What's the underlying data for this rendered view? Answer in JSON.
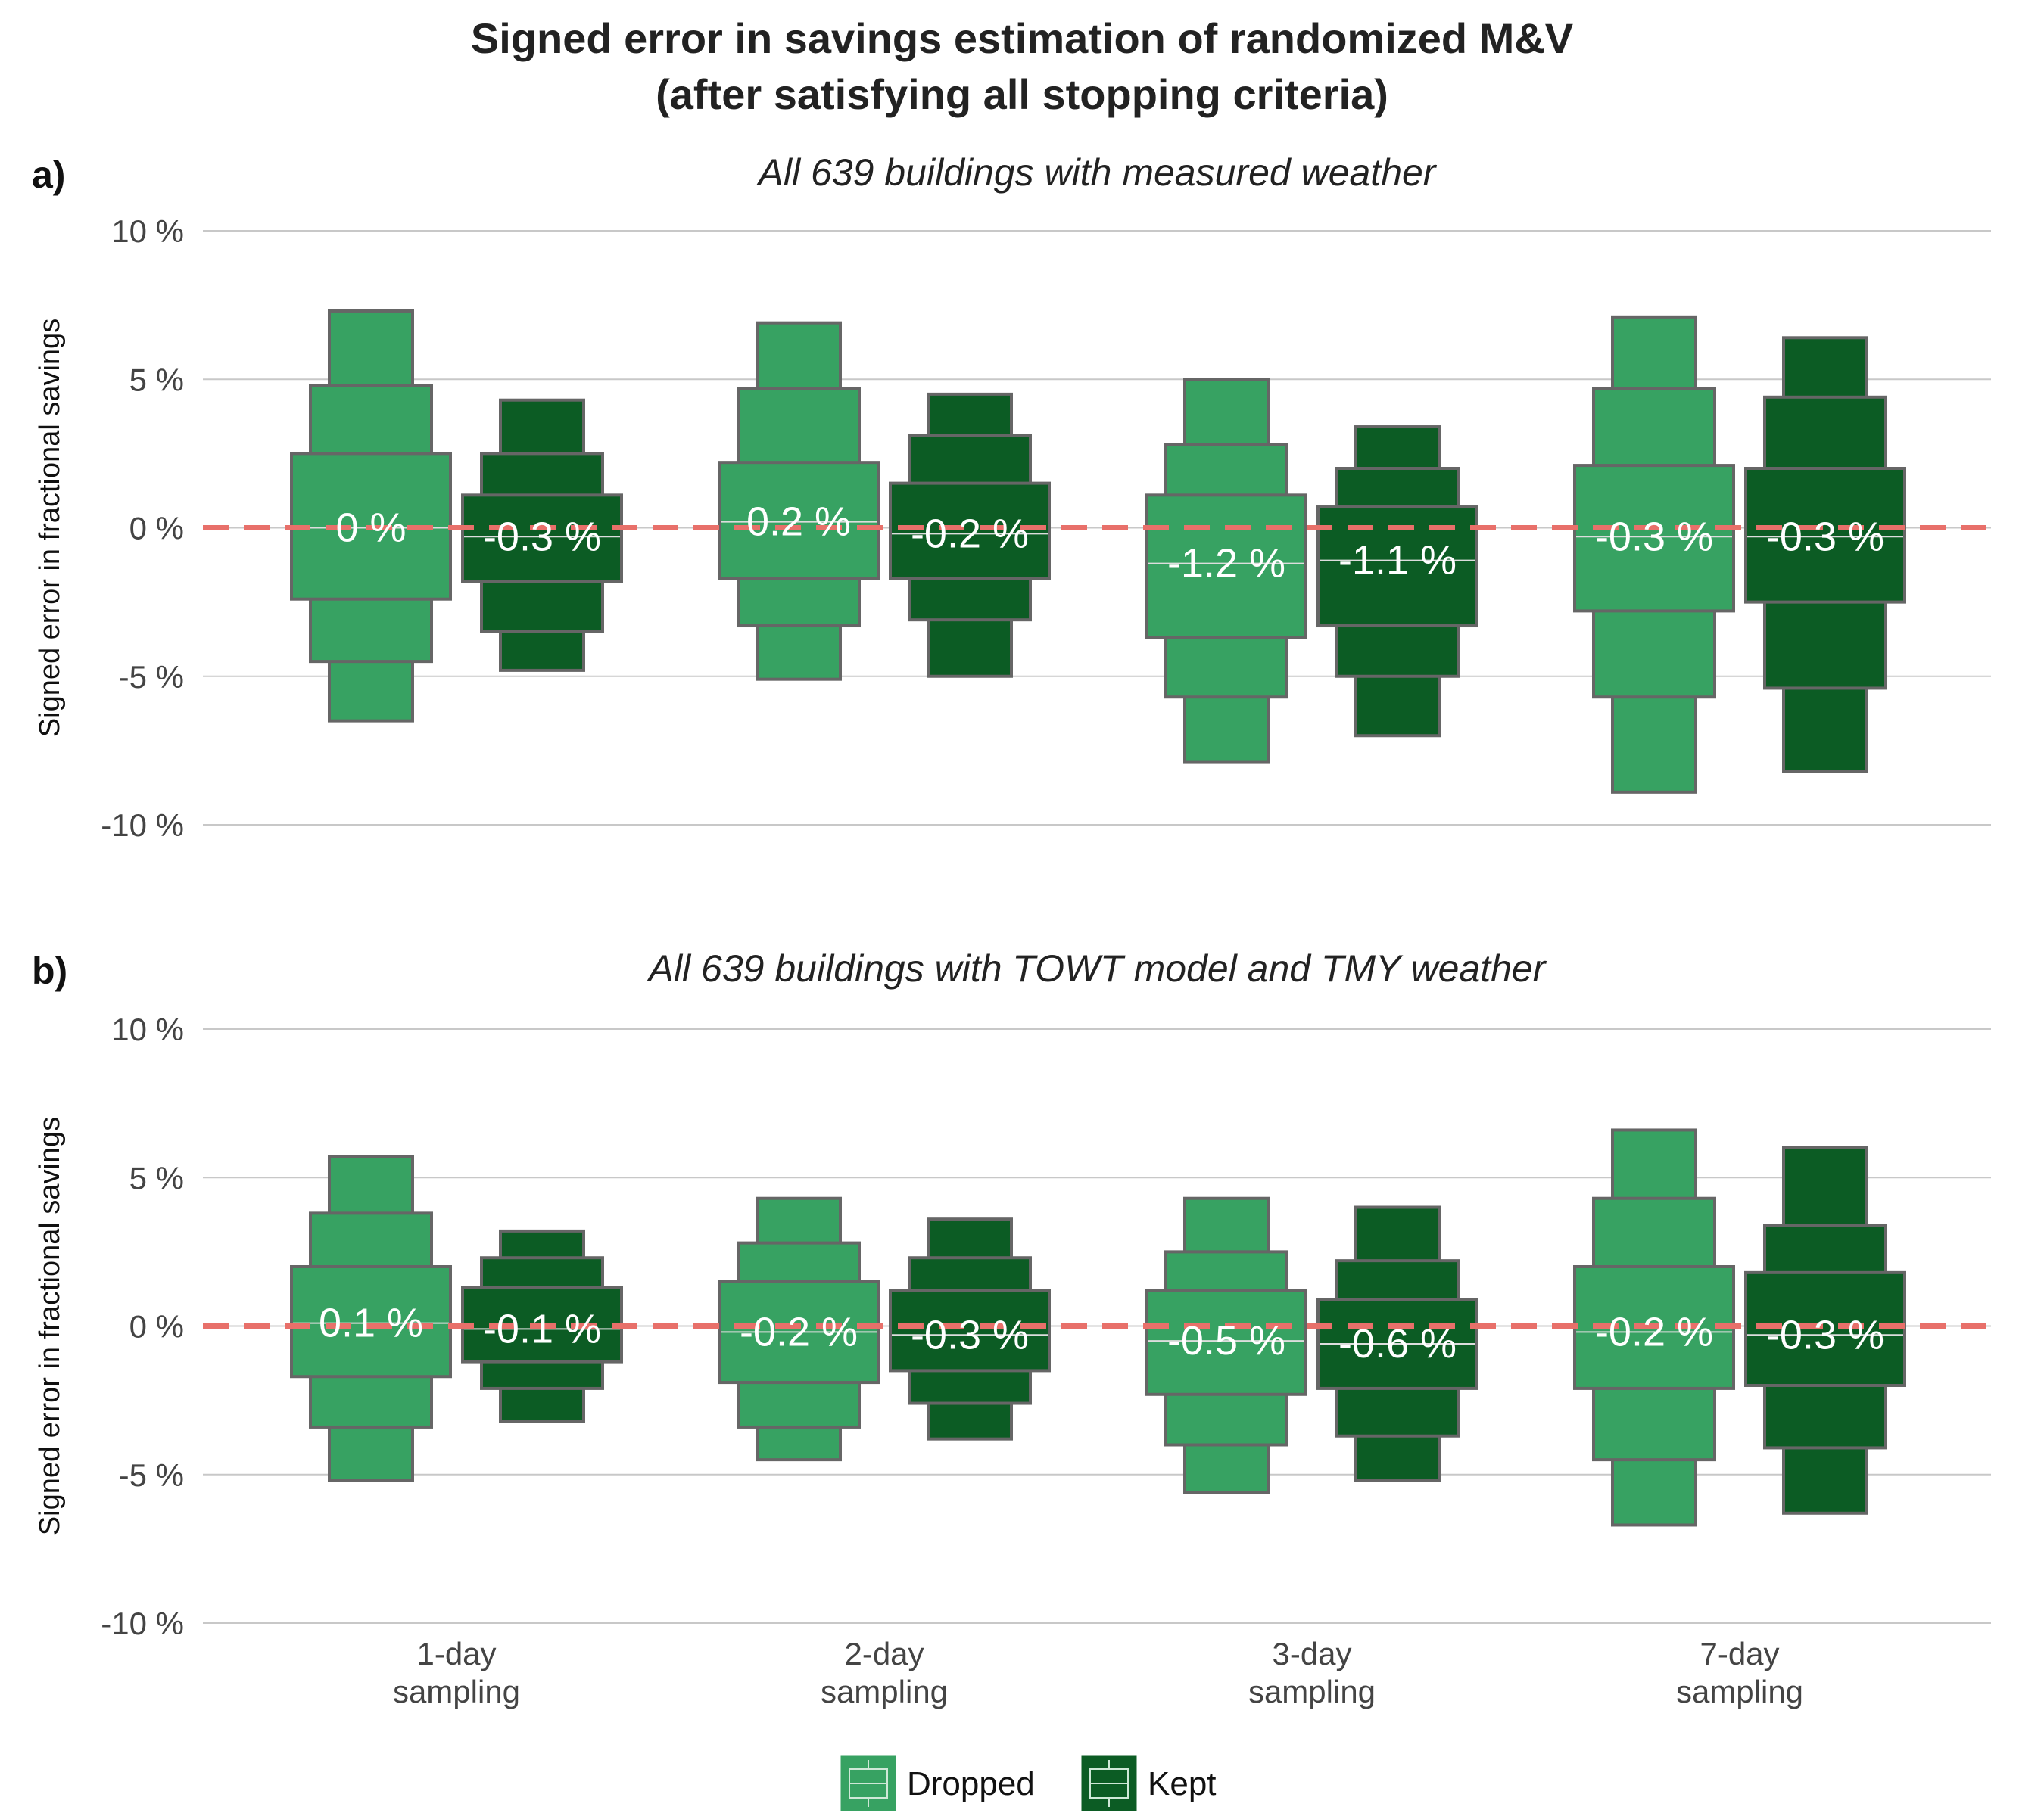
{
  "title_line1": "Signed error in savings estimation of randomized M&V",
  "title_line2": "(after satisfying all stopping criteria)",
  "colors": {
    "Dropped": "#37a262",
    "Kept": "#0c5c24",
    "reference": "#e8706a",
    "grid": "#c8c8c8",
    "box_edge": "#666666"
  },
  "chart_data": {
    "type": "letter-value boxen",
    "categories": [
      "1-day\nsampling",
      "2-day\nsampling",
      "3-day\nsampling",
      "7-day\nsampling"
    ],
    "ylabel": "Signed error in fractional savings",
    "ylim": [
      -10,
      10
    ],
    "yticks": [
      10,
      5,
      0,
      -5,
      -10
    ],
    "ytick_labels": [
      "10 %",
      "5 %",
      "0 %",
      "-5 %",
      "-10 %"
    ],
    "reference_line": 0,
    "legend": {
      "position": "bottom-center",
      "entries": [
        "Dropped",
        "Kept"
      ]
    },
    "panels": [
      {
        "tag": "a)",
        "subtitle": "All 639 buildings with measured weather",
        "series": [
          {
            "name": "Dropped",
            "groups": [
              {
                "median": 0.0,
                "label": "0 %",
                "levels": [
                  [
                    -2.4,
                    2.5
                  ],
                  [
                    -4.5,
                    4.8
                  ],
                  [
                    -6.5,
                    7.3
                  ]
                ]
              },
              {
                "median": 0.2,
                "label": "0.2 %",
                "levels": [
                  [
                    -1.7,
                    2.2
                  ],
                  [
                    -3.3,
                    4.7
                  ],
                  [
                    -5.1,
                    6.9
                  ]
                ]
              },
              {
                "median": -1.2,
                "label": "-1.2 %",
                "levels": [
                  [
                    -3.7,
                    1.1
                  ],
                  [
                    -5.7,
                    2.8
                  ],
                  [
                    -7.9,
                    5.0
                  ]
                ]
              },
              {
                "median": -0.3,
                "label": "-0.3 %",
                "levels": [
                  [
                    -2.8,
                    2.1
                  ],
                  [
                    -5.7,
                    4.7
                  ],
                  [
                    -8.9,
                    7.1
                  ]
                ]
              }
            ]
          },
          {
            "name": "Kept",
            "groups": [
              {
                "median": -0.3,
                "label": "-0.3 %",
                "levels": [
                  [
                    -1.8,
                    1.1
                  ],
                  [
                    -3.5,
                    2.5
                  ],
                  [
                    -4.8,
                    4.3
                  ]
                ]
              },
              {
                "median": -0.2,
                "label": "-0.2 %",
                "levels": [
                  [
                    -1.7,
                    1.5
                  ],
                  [
                    -3.1,
                    3.1
                  ],
                  [
                    -5.0,
                    4.5
                  ]
                ]
              },
              {
                "median": -1.1,
                "label": "-1.1 %",
                "levels": [
                  [
                    -3.3,
                    0.7
                  ],
                  [
                    -5.0,
                    2.0
                  ],
                  [
                    -7.0,
                    3.4
                  ]
                ]
              },
              {
                "median": -0.3,
                "label": "-0.3 %",
                "levels": [
                  [
                    -2.5,
                    2.0
                  ],
                  [
                    -5.4,
                    4.4
                  ],
                  [
                    -8.2,
                    6.4
                  ]
                ]
              }
            ]
          }
        ]
      },
      {
        "tag": "b)",
        "subtitle": "All 639 buildings with TOWT model and TMY weather",
        "series": [
          {
            "name": "Dropped",
            "groups": [
              {
                "median": 0.1,
                "label": "0.1 %",
                "levels": [
                  [
                    -1.7,
                    2.0
                  ],
                  [
                    -3.4,
                    3.8
                  ],
                  [
                    -5.2,
                    5.7
                  ]
                ]
              },
              {
                "median": -0.2,
                "label": "-0.2 %",
                "levels": [
                  [
                    -1.9,
                    1.5
                  ],
                  [
                    -3.4,
                    2.8
                  ],
                  [
                    -4.5,
                    4.3
                  ]
                ]
              },
              {
                "median": -0.5,
                "label": "-0.5 %",
                "levels": [
                  [
                    -2.3,
                    1.2
                  ],
                  [
                    -4.0,
                    2.5
                  ],
                  [
                    -5.6,
                    4.3
                  ]
                ]
              },
              {
                "median": -0.2,
                "label": "-0.2 %",
                "levels": [
                  [
                    -2.1,
                    2.0
                  ],
                  [
                    -4.5,
                    4.3
                  ],
                  [
                    -6.7,
                    6.6
                  ]
                ]
              }
            ]
          },
          {
            "name": "Kept",
            "groups": [
              {
                "median": -0.1,
                "label": "-0.1 %",
                "levels": [
                  [
                    -1.2,
                    1.3
                  ],
                  [
                    -2.1,
                    2.3
                  ],
                  [
                    -3.2,
                    3.2
                  ]
                ]
              },
              {
                "median": -0.3,
                "label": "-0.3 %",
                "levels": [
                  [
                    -1.5,
                    1.2
                  ],
                  [
                    -2.6,
                    2.3
                  ],
                  [
                    -3.8,
                    3.6
                  ]
                ]
              },
              {
                "median": -0.6,
                "label": "-0.6 %",
                "levels": [
                  [
                    -2.1,
                    0.9
                  ],
                  [
                    -3.7,
                    2.2
                  ],
                  [
                    -5.2,
                    4.0
                  ]
                ]
              },
              {
                "median": -0.3,
                "label": "-0.3 %",
                "levels": [
                  [
                    -2.0,
                    1.8
                  ],
                  [
                    -4.1,
                    3.4
                  ],
                  [
                    -6.3,
                    6.0
                  ]
                ]
              }
            ]
          }
        ]
      }
    ]
  }
}
